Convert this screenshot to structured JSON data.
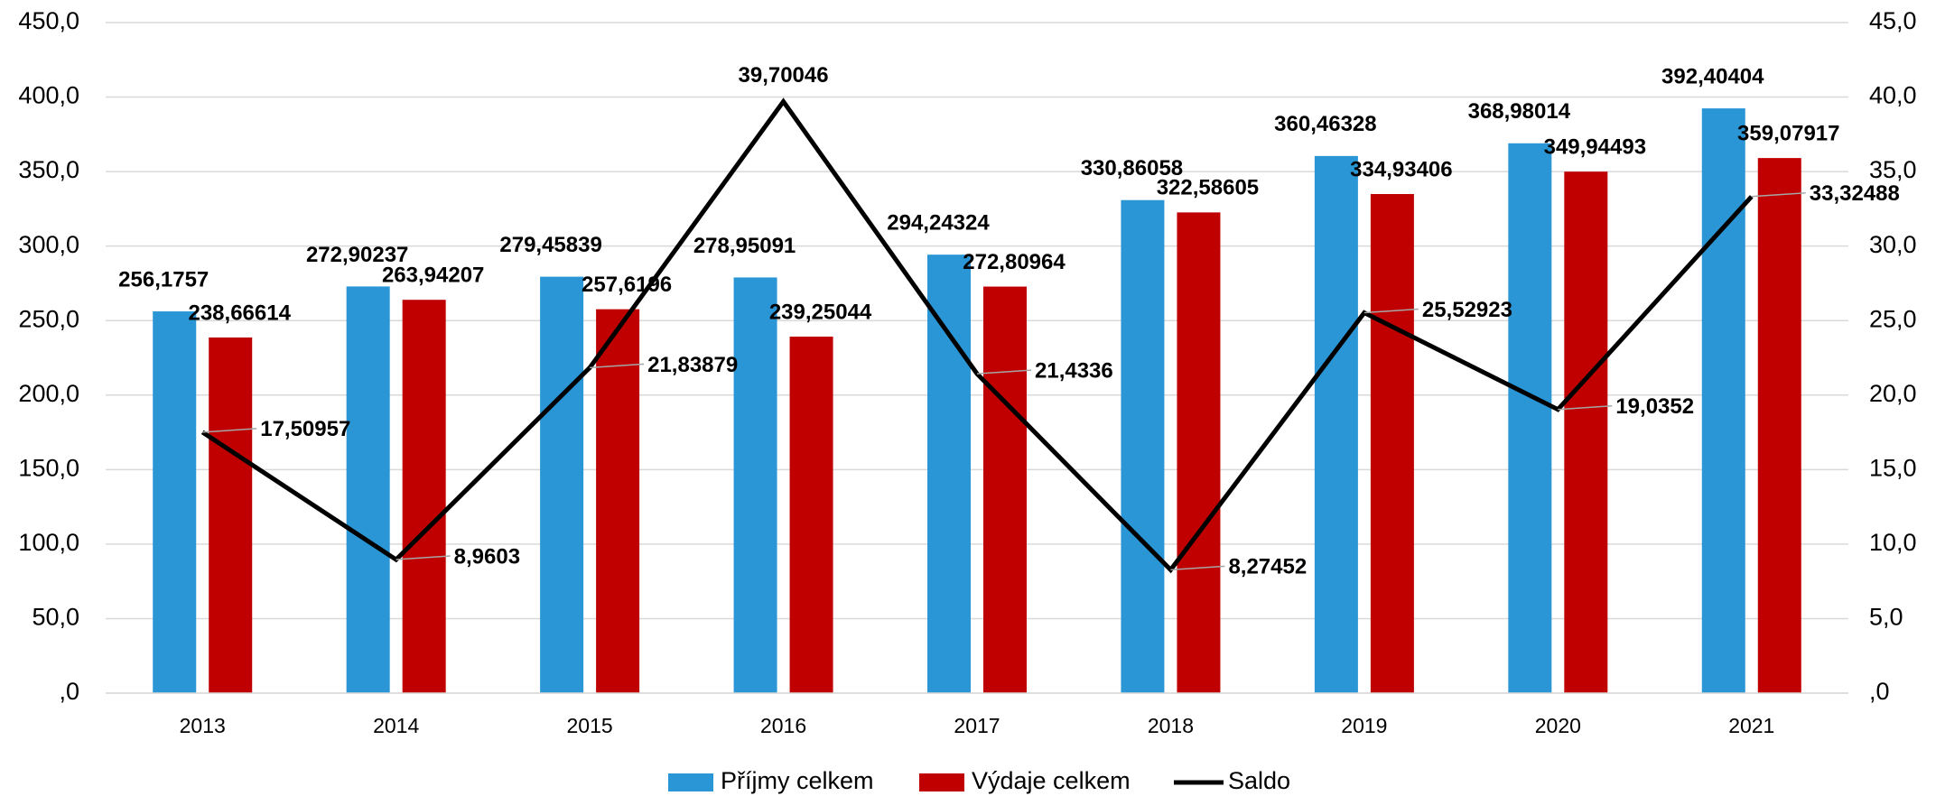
{
  "chart_data": {
    "type": "bar",
    "categories": [
      "2013",
      "2014",
      "2015",
      "2016",
      "2017",
      "2018",
      "2019",
      "2020",
      "2021"
    ],
    "series": [
      {
        "name": "Příjmy celkem",
        "color": "#2a96d6",
        "type": "bar",
        "values": [
          256.1757,
          272.90237,
          279.45839,
          278.95091,
          294.24324,
          330.86058,
          360.46328,
          368.98014,
          392.40404
        ],
        "value_labels": [
          "256,1757",
          "272,90237",
          "279,45839",
          "278,95091",
          "294,24324",
          "330,86058",
          "360,46328",
          "368,98014",
          "392,40404"
        ]
      },
      {
        "name": "Výdaje celkem",
        "color": "#c00000",
        "type": "bar",
        "values": [
          238.66614,
          263.94207,
          257.6196,
          239.25044,
          272.80964,
          322.58605,
          334.93406,
          349.94493,
          359.07917
        ],
        "value_labels": [
          "238,66614",
          "263,94207",
          "257,6196",
          "239,25044",
          "272,80964",
          "322,58605",
          "334,93406",
          "349,94493",
          "359,07917"
        ]
      },
      {
        "name": "Saldo",
        "color": "#000000",
        "type": "line",
        "axis": "y2",
        "values": [
          17.50957,
          8.9603,
          21.83879,
          39.70046,
          21.4336,
          8.27452,
          25.52923,
          19.0352,
          33.32488
        ],
        "value_labels": [
          "17,50957",
          "8,9603",
          "21,83879",
          "39,70046",
          "21,4336",
          "8,27452",
          "25,52923",
          "19,0352",
          "33,32488"
        ]
      }
    ],
    "ylim": [
      0,
      450
    ],
    "yticks": [
      {
        "value": 0,
        "label": ",0"
      },
      {
        "value": 50,
        "label": "50,0"
      },
      {
        "value": 100,
        "label": "100,0"
      },
      {
        "value": 150,
        "label": "150,0"
      },
      {
        "value": 200,
        "label": "200,0"
      },
      {
        "value": 250,
        "label": "250,0"
      },
      {
        "value": 300,
        "label": "300,0"
      },
      {
        "value": 350,
        "label": "350,0"
      },
      {
        "value": 400,
        "label": "400,0"
      },
      {
        "value": 450,
        "label": "450,0"
      }
    ],
    "y2lim": [
      0,
      45
    ],
    "y2ticks": [
      {
        "value": 0,
        "label": ",0"
      },
      {
        "value": 5,
        "label": "5,0"
      },
      {
        "value": 10,
        "label": "10,0"
      },
      {
        "value": 15,
        "label": "15,0"
      },
      {
        "value": 20,
        "label": "20,0"
      },
      {
        "value": 25,
        "label": "25,0"
      },
      {
        "value": 30,
        "label": "30,0"
      },
      {
        "value": 35,
        "label": "35,0"
      },
      {
        "value": 40,
        "label": "40,0"
      },
      {
        "value": 45,
        "label": "45,0"
      }
    ],
    "grid": true,
    "legend": "bottom"
  }
}
